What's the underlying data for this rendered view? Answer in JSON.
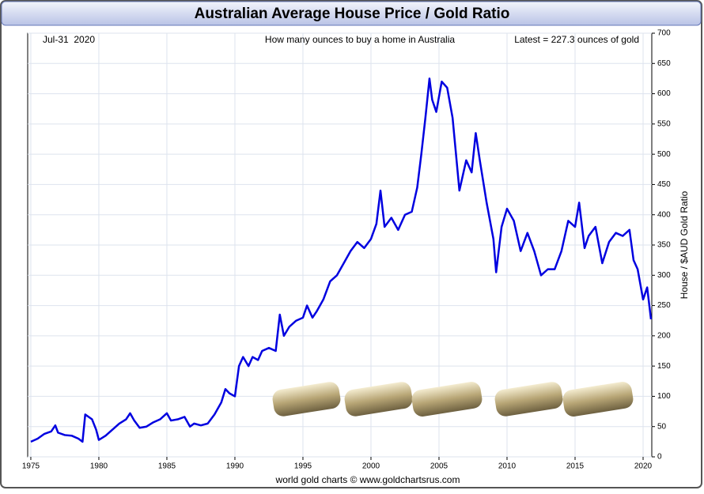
{
  "chart_data": {
    "type": "line",
    "title": "Australian Average House Price / Gold Ratio",
    "date_label": "Jul-31  2020",
    "subtitle": "How many ounces to buy a home in Australia",
    "annotation": "Latest = 227.3 ounces of gold",
    "y_label": "House / $AUD Gold Ratio",
    "footer": "world gold charts © www.goldchartsrus.com",
    "x": [
      1975.0,
      1975.5,
      1976.0,
      1976.5,
      1976.8,
      1977.0,
      1977.5,
      1978.0,
      1978.5,
      1978.8,
      1979.0,
      1979.5,
      1979.8,
      1980.0,
      1980.5,
      1981.0,
      1981.5,
      1982.0,
      1982.3,
      1982.6,
      1983.0,
      1983.5,
      1984.0,
      1984.5,
      1985.0,
      1985.3,
      1985.8,
      1986.3,
      1986.7,
      1987.0,
      1987.5,
      1988.0,
      1988.5,
      1989.0,
      1989.3,
      1989.6,
      1990.0,
      1990.3,
      1990.6,
      1991.0,
      1991.3,
      1991.7,
      1992.0,
      1992.5,
      1993.0,
      1993.3,
      1993.6,
      1994.0,
      1994.5,
      1995.0,
      1995.3,
      1995.7,
      1996.0,
      1996.5,
      1997.0,
      1997.5,
      1998.0,
      1998.5,
      1999.0,
      1999.5,
      2000.0,
      2000.4,
      2000.7,
      2001.0,
      2001.5,
      2002.0,
      2002.5,
      2003.0,
      2003.4,
      2003.7,
      2004.0,
      2004.3,
      2004.5,
      2004.8,
      2005.2,
      2005.6,
      2006.0,
      2006.5,
      2007.0,
      2007.4,
      2007.7,
      2008.0,
      2008.5,
      2009.0,
      2009.2,
      2009.6,
      2010.0,
      2010.5,
      2011.0,
      2011.5,
      2012.0,
      2012.5,
      2013.0,
      2013.5,
      2014.0,
      2014.5,
      2015.0,
      2015.3,
      2015.7,
      2016.0,
      2016.5,
      2017.0,
      2017.5,
      2018.0,
      2018.5,
      2019.0,
      2019.3,
      2019.6,
      2020.0,
      2020.3,
      2020.58
    ],
    "series": [
      {
        "name": "House / Gold Ratio",
        "color": "#0000e0",
        "values": [
          25,
          30,
          38,
          42,
          52,
          40,
          36,
          35,
          30,
          25,
          70,
          62,
          45,
          28,
          35,
          45,
          55,
          62,
          72,
          60,
          48,
          50,
          57,
          62,
          72,
          60,
          62,
          66,
          50,
          55,
          52,
          55,
          70,
          90,
          112,
          105,
          100,
          150,
          165,
          150,
          165,
          160,
          175,
          180,
          175,
          235,
          200,
          215,
          225,
          230,
          250,
          230,
          240,
          260,
          290,
          300,
          320,
          340,
          355,
          345,
          360,
          385,
          440,
          380,
          395,
          375,
          400,
          405,
          445,
          500,
          560,
          625,
          590,
          570,
          620,
          610,
          560,
          440,
          490,
          470,
          535,
          490,
          420,
          360,
          305,
          380,
          410,
          390,
          340,
          370,
          340,
          300,
          310,
          310,
          340,
          390,
          380,
          420,
          345,
          365,
          380,
          320,
          355,
          370,
          365,
          375,
          325,
          310,
          260,
          280,
          227.3
        ]
      }
    ],
    "xlim": [
      1974.77,
      2020.64
    ],
    "xticks": [
      1975,
      1980,
      1985,
      1990,
      1995,
      2000,
      2005,
      2010,
      2015,
      2020
    ],
    "ylim": [
      0,
      700
    ],
    "yticks": [
      0,
      50,
      100,
      150,
      200,
      250,
      300,
      350,
      400,
      450,
      500,
      550,
      600,
      650,
      700
    ],
    "grid": true
  }
}
